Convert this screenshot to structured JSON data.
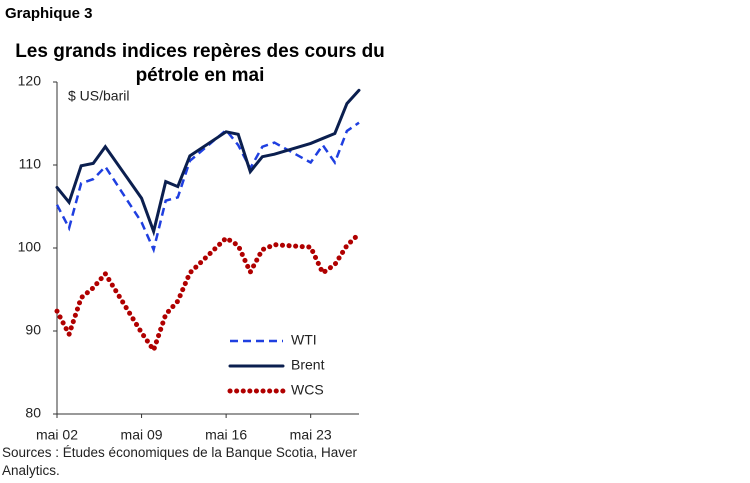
{
  "chart_label": "Graphique 3",
  "chart_data": {
    "type": "line",
    "title": "Les grands indices repères des cours du pétrole en mai",
    "y_unit": "$ US/baril",
    "x": [
      2,
      3,
      4,
      5,
      6,
      9,
      10,
      11,
      12,
      13,
      16,
      17,
      18,
      19,
      20,
      23,
      24,
      25,
      26,
      27
    ],
    "xlim": [
      2,
      27
    ],
    "xticks": [
      {
        "value": 2,
        "label": "mai 02"
      },
      {
        "value": 9,
        "label": "mai 09"
      },
      {
        "value": 16,
        "label": "mai 16"
      },
      {
        "value": 23,
        "label": "mai 23"
      }
    ],
    "ylim": [
      80,
      120
    ],
    "yticks": [
      80,
      90,
      100,
      110,
      120
    ],
    "legend": "lower right",
    "series": [
      {
        "name": "WTI",
        "color": "#1f3fe0",
        "style": "dashed",
        "values": [
          105.2,
          102.4,
          107.8,
          108.3,
          109.8,
          103.1,
          99.8,
          105.7,
          106.1,
          110.5,
          114.2,
          112.4,
          109.6,
          112.2,
          112.7,
          110.3,
          112.4,
          110.3,
          114.1,
          115.1
        ]
      },
      {
        "name": "Brent",
        "color": "#0b1f4f",
        "style": "solid",
        "values": [
          107.3,
          105.5,
          109.9,
          110.2,
          112.2,
          106.0,
          102.0,
          108.0,
          107.4,
          111.1,
          114.0,
          113.7,
          109.2,
          111.0,
          111.3,
          112.6,
          113.2,
          113.8,
          117.4,
          119.0
        ]
      },
      {
        "name": "WCS",
        "color": "#b00000",
        "style": "dotted",
        "values": [
          92.4,
          89.6,
          94.0,
          95.2,
          96.9,
          89.8,
          87.7,
          92.0,
          93.6,
          97.0,
          101.2,
          100.3,
          97.1,
          99.8,
          100.4,
          100.1,
          97.0,
          98.0,
          100.3,
          101.7
        ]
      }
    ]
  },
  "source": "Sources : Études économiques de la Banque Scotia, Haver Analytics."
}
